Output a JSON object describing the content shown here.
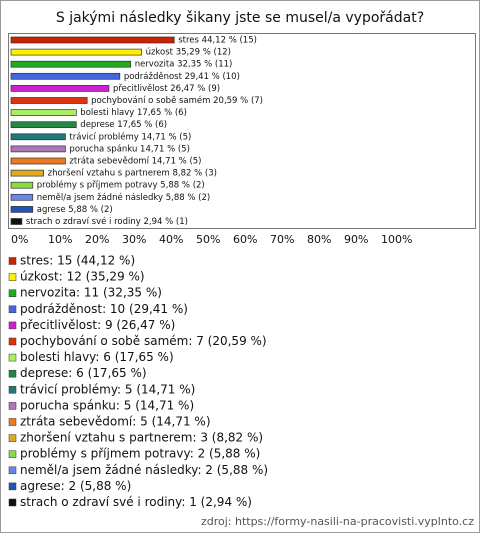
{
  "chart_data": {
    "type": "bar",
    "orientation": "horizontal",
    "title": "S jakými následky šikany jste se musel/a vypořádat?",
    "values": [
      44.12,
      35.29,
      32.35,
      29.41,
      26.47,
      20.59,
      17.65,
      17.65,
      14.71,
      14.71,
      14.71,
      8.82,
      5.88,
      5.88,
      5.88,
      2.94
    ],
    "value_labels": [
      "stres 44,12 % (15)",
      "úzkost 35,29 % (12)",
      "nervozita 32,35 % (11)",
      "podrážděnost 29,41 % (10)",
      "přecitlivělost 26,47 % (9)",
      "pochybování o sobě samém 20,59 % (7)",
      "bolesti hlavy 17,65 % (6)",
      "deprese 17,65 % (6)",
      "trávicí problémy 14,71 % (5)",
      "porucha spánku 14,71 % (5)",
      "ztráta sebevědomí 14,71 % (5)",
      "zhoršení vztahu s partnerem 8,82 % (3)",
      "problémy s příjmem potravy 5,88 % (2)",
      "neměl/a jsem žádné následky 5,88 % (2)",
      "agrese 5,88 % (2)",
      "strach o zdraví své i rodiny 2,94 % (1)"
    ],
    "legend_labels": [
      "stres: 15 (44,12 %)",
      "úzkost: 12 (35,29 %)",
      "nervozita: 11 (32,35 %)",
      "podrážděnost: 10 (29,41 %)",
      "přecitlivělost: 9 (26,47 %)",
      "pochybování o sobě samém: 7 (20,59 %)",
      "bolesti hlavy: 6 (17,65 %)",
      "deprese: 6 (17,65 %)",
      "trávicí problémy: 5 (14,71 %)",
      "porucha spánku: 5 (14,71 %)",
      "ztráta sebevědomí: 5 (14,71 %)",
      "zhoršení vztahu s partnerem: 3 (8,82 %)",
      "problémy s příjmem potravy: 2 (5,88 %)",
      "neměl/a jsem žádné následky: 2 (5,88 %)",
      "agrese: 2 (5,88 %)",
      "strach o zdraví své i rodiny: 1 (2,94 %)"
    ],
    "colors": [
      "#cc2200",
      "#ffee00",
      "#22aa22",
      "#4466dd",
      "#cc22cc",
      "#dd3311",
      "#aaee66",
      "#228844",
      "#227777",
      "#aa77bb",
      "#ee7722",
      "#ddaa22",
      "#88dd44",
      "#6688ee",
      "#2255bb",
      "#111111"
    ],
    "xlim": [
      0,
      100
    ],
    "xticks": [
      {
        "value": 0,
        "label": "0%"
      },
      {
        "value": 10,
        "label": "10%"
      },
      {
        "value": 20,
        "label": "20%"
      },
      {
        "value": 30,
        "label": "30%"
      },
      {
        "value": 40,
        "label": "40%"
      },
      {
        "value": 50,
        "label": "50%"
      },
      {
        "value": 60,
        "label": "60%"
      },
      {
        "value": 70,
        "label": "70%"
      },
      {
        "value": 80,
        "label": "80%"
      },
      {
        "value": 90,
        "label": "90%"
      },
      {
        "value": 100,
        "label": "100%"
      }
    ],
    "source": "zdroj: https://formy-nasili-na-pracovisti.vyplnto.cz"
  }
}
